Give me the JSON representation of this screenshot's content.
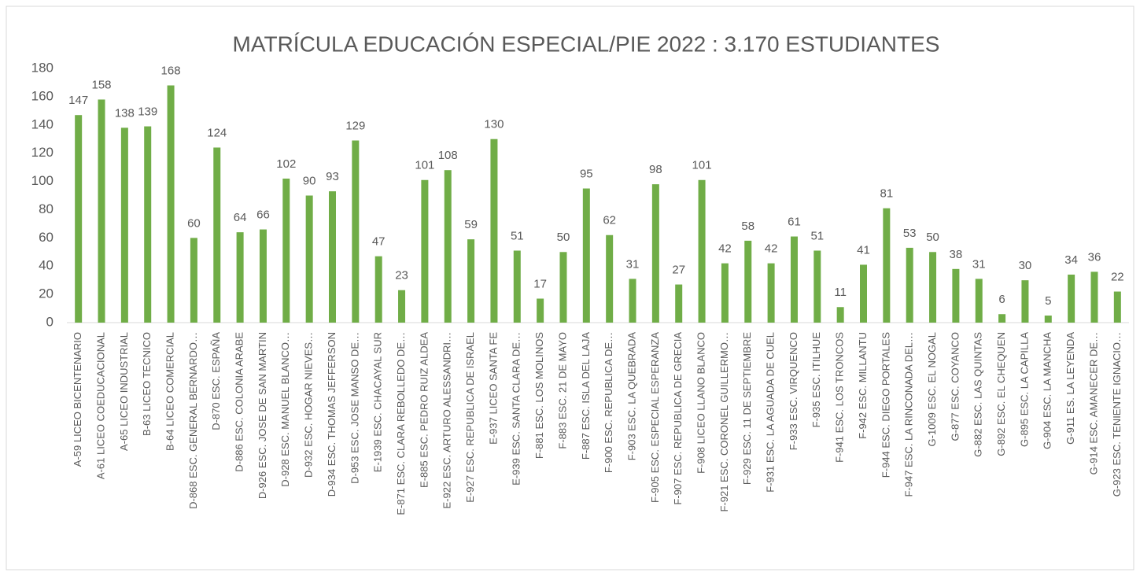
{
  "chart_data": {
    "type": "bar",
    "title": "MATRÍCULA EDUCACIÓN ESPECIAL/PIE 2022 : 3.170 ESTUDIANTES",
    "categories": [
      "A-59 LICEO BICENTENARIO",
      "A-61 LICEO COEDUCACIONAL",
      "A-65 LICEO INDUSTRIAL",
      "B-63  LICEO TECNICO",
      "B-64  LICEO COMERCIAL",
      "D-868 ESC. GENERAL BERNARDO…",
      "D-870 ESC. ESPAÑA",
      "D-886  ESC. COLONIA ARABE",
      "D-926  ESC. JOSE DE SAN MARTIN",
      "D-928  ESC. MANUEL  BLANCO…",
      "D-932 ESC. HOGAR  NIEVES…",
      "D-934 ESC. THOMAS JEFFERSON",
      "D-953  ESC. JOSE MANSO DE…",
      "E-1939  ESC. CHACAYAL SUR",
      "E-871  ESC. CLARA REBOLLEDO DE…",
      "E-885  ESC.  PEDRO RUIZ ALDEA",
      "E-922  ESC. ARTURO ALESSANDRI…",
      "E-927  ESC.  REPUBLICA DE ISRAEL",
      "E-937  LICEO SANTA FE",
      "E-939  ESC.  SANTA CLARA DE…",
      "F-881   ESC.  LOS MOLINOS",
      "F-883  ESC.  21 DE MAYO",
      "F-887   ESC.  ISLA DEL LAJA",
      "F-900   ESC.  REPUBLICA DE…",
      "F-903   ESC.  LA QUEBRADA",
      "F-905  ESC. ESPECIAL ESPERANZA",
      "F-907  ESC. REPUBLICA DE GRECIA",
      "F-908  LICEO  LLANO BLANCO",
      "F-921  ESC. CORONEL GUILLERMO…",
      "F-929  ESC. 11 DE SEPTIEMBRE",
      "F-931  ESC. LA AGUADA DE CUEL",
      "F-933   ESC.  VIRQUENCO",
      "F-935    ESC.  ITILHUE",
      "F-941  ESC. LOS TRONCOS",
      "F-942    ESC.  MILLANTU",
      "F-944    ESC. DIEGO PORTALES",
      "F-947    ESC.  LA RINCONADA DEL…",
      "G-1009   ESC.  EL NOGAL",
      "G-877    ESC.  COYANCO",
      "G-882    ESC.  LAS QUINTAS",
      "G-892    ESC.  EL CHEQUEN",
      "G-895   ESC.  LA  CAPILLA",
      "G-904    ESC.  LA MANCHA",
      "G-911     ES.  LA LEYENDA",
      "G-914   ESC.  AMANECER DE…",
      "G-923   ESC.  TENIENTE  IGNACIO…"
    ],
    "values": [
      147,
      158,
      138,
      139,
      168,
      60,
      124,
      64,
      66,
      102,
      90,
      93,
      129,
      47,
      23,
      101,
      108,
      59,
      130,
      51,
      17,
      50,
      95,
      62,
      31,
      98,
      27,
      101,
      42,
      58,
      42,
      61,
      51,
      11,
      41,
      81,
      53,
      50,
      38,
      31,
      6,
      30,
      5,
      34,
      36,
      22
    ],
    "color": "#70ad47",
    "ylim": [
      0,
      180
    ],
    "yticks": [
      0,
      20,
      40,
      60,
      80,
      100,
      120,
      140,
      160,
      180
    ],
    "grid": false
  }
}
